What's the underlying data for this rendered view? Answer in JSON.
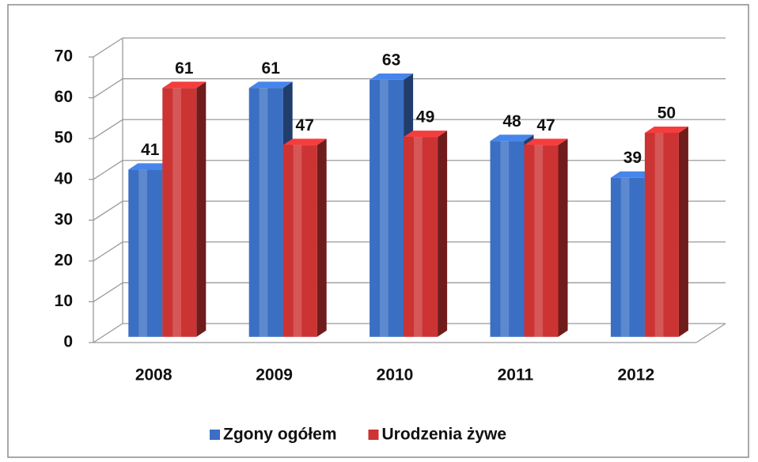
{
  "chart_data": {
    "type": "bar3d",
    "categories": [
      "2008",
      "2009",
      "2010",
      "2011",
      "2012"
    ],
    "series": [
      {
        "name": "Zgony ogółem",
        "color": "#3a6fc4",
        "values": [
          41,
          61,
          63,
          48,
          39
        ]
      },
      {
        "name": "Urodzenia żywe",
        "color": "#cc3333",
        "values": [
          61,
          47,
          49,
          47,
          50
        ]
      }
    ],
    "ylim": [
      0,
      70
    ],
    "yticks": [
      0,
      10,
      20,
      30,
      40,
      50,
      60,
      70
    ],
    "grid": true,
    "legend": "bottom"
  }
}
